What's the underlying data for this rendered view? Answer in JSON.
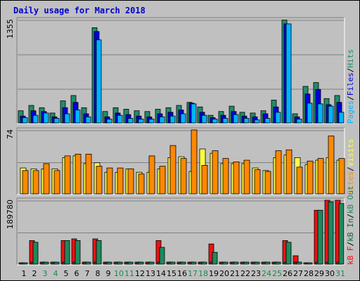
{
  "title": "Daily usage for March 2018",
  "colors": {
    "hits": "#218c6a",
    "files": "#0000dd",
    "pages": "#00b4ff",
    "visits": "#ffff44",
    "sites": "#ff8800",
    "kbf": "#ee1111",
    "kbin": "#106b3c",
    "kbout": "#1c8a5e",
    "background": "#c0c0c0",
    "weekend_label": "#1a8a4a",
    "weekday_label": "#000000"
  },
  "chart_data": [
    {
      "type": "bar",
      "name": "hits-files-pages",
      "categories": [
        "1",
        "2",
        "3",
        "4",
        "5",
        "6",
        "7",
        "8",
        "9",
        "10",
        "11",
        "12",
        "13",
        "14",
        "15",
        "16",
        "17",
        "18",
        "19",
        "20",
        "21",
        "22",
        "23",
        "24",
        "25",
        "26",
        "27",
        "28",
        "29",
        "30",
        "31"
      ],
      "weekend_days": [
        "3",
        "4",
        "10",
        "11",
        "17",
        "18",
        "24",
        "25",
        "31"
      ],
      "ymax_label": "1355",
      "ylim": [
        0,
        1355
      ],
      "legend": [
        "Pages",
        "/",
        "Files",
        "/",
        "Hits"
      ],
      "series": [
        {
          "name": "Hits",
          "values": [
            160,
            230,
            200,
            130,
            290,
            360,
            200,
            1250,
            150,
            200,
            180,
            160,
            150,
            180,
            200,
            230,
            270,
            210,
            100,
            150,
            220,
            140,
            130,
            160,
            300,
            1350,
            120,
            480,
            530,
            320,
            360
          ]
        },
        {
          "name": "Files",
          "values": [
            90,
            160,
            150,
            80,
            200,
            270,
            120,
            1200,
            80,
            130,
            110,
            90,
            80,
            120,
            140,
            170,
            260,
            140,
            70,
            100,
            150,
            90,
            80,
            120,
            210,
            1300,
            80,
            380,
            440,
            240,
            270
          ]
        },
        {
          "name": "Pages",
          "values": [
            70,
            100,
            130,
            60,
            120,
            170,
            80,
            1090,
            50,
            100,
            60,
            50,
            50,
            80,
            90,
            120,
            250,
            100,
            50,
            60,
            110,
            60,
            40,
            60,
            140,
            1300,
            50,
            260,
            250,
            220,
            140
          ]
        }
      ]
    },
    {
      "type": "bar",
      "name": "visits-sites",
      "categories": [
        "1",
        "2",
        "3",
        "4",
        "5",
        "6",
        "7",
        "8",
        "9",
        "10",
        "11",
        "12",
        "13",
        "14",
        "15",
        "16",
        "17",
        "18",
        "19",
        "20",
        "21",
        "22",
        "23",
        "24",
        "25",
        "26",
        "27",
        "28",
        "29",
        "30",
        "31"
      ],
      "ymax_label": "74",
      "ylim": [
        0,
        74
      ],
      "legend": [
        "Sites",
        "/",
        "Visits"
      ],
      "series": [
        {
          "name": "Visits",
          "values": [
            30,
            29,
            29,
            29,
            42,
            44,
            35,
            36,
            25,
            25,
            29,
            25,
            25,
            29,
            42,
            43,
            26,
            52,
            47,
            35,
            35,
            35,
            30,
            27,
            42,
            45,
            42,
            34,
            39,
            42,
            39
          ]
        },
        {
          "name": "Sites",
          "values": [
            27,
            27,
            35,
            27,
            44,
            46,
            46,
            32,
            30,
            30,
            29,
            23,
            44,
            32,
            56,
            41,
            75,
            33,
            50,
            41,
            37,
            39,
            28,
            26,
            50,
            51,
            31,
            38,
            41,
            67,
            41
          ]
        }
      ]
    },
    {
      "type": "bar",
      "name": "kbf-kbin-kbout",
      "categories": [
        "1",
        "2",
        "3",
        "4",
        "5",
        "6",
        "7",
        "8",
        "9",
        "10",
        "11",
        "12",
        "13",
        "14",
        "15",
        "16",
        "17",
        "18",
        "19",
        "20",
        "21",
        "22",
        "23",
        "24",
        "25",
        "26",
        "27",
        "28",
        "29",
        "30",
        "31"
      ],
      "ymax_label": "189780",
      "ylim": [
        0,
        189780
      ],
      "legend": [
        "kB F",
        "/",
        "kB In",
        "/",
        "kB Out"
      ],
      "series": [
        {
          "name": "kB F",
          "values": [
            4000,
            70000,
            6000,
            6000,
            70000,
            75000,
            6000,
            75000,
            6000,
            6000,
            6000,
            6000,
            6000,
            70000,
            6000,
            6000,
            6000,
            6000,
            60000,
            6000,
            6000,
            6000,
            6000,
            6000,
            6000,
            70000,
            25000,
            4000,
            160000,
            190000,
            190000
          ]
        },
        {
          "name": "kB In",
          "values": [
            4000,
            6000,
            6000,
            6000,
            6000,
            6000,
            6000,
            6000,
            6000,
            6000,
            6000,
            6000,
            6000,
            6000,
            6000,
            6000,
            6000,
            6000,
            6000,
            6000,
            6000,
            6000,
            6000,
            6000,
            6000,
            6000,
            6000,
            4000,
            6000,
            6000,
            6000
          ]
        },
        {
          "name": "kB Out",
          "values": [
            4000,
            65000,
            6000,
            6000,
            70000,
            70000,
            6000,
            70000,
            6000,
            6000,
            6000,
            6000,
            6000,
            50000,
            6000,
            6000,
            6000,
            6000,
            35000,
            6000,
            6000,
            6000,
            6000,
            6000,
            6000,
            65000,
            6000,
            4000,
            160000,
            185000,
            180000
          ]
        }
      ]
    }
  ]
}
